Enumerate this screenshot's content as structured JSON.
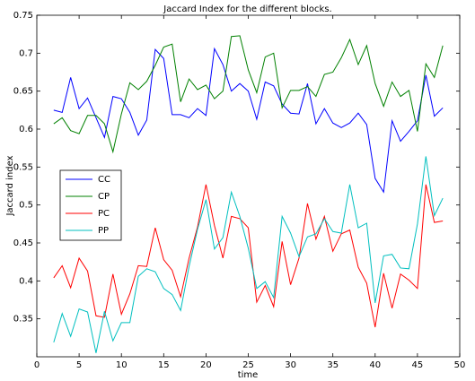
{
  "chart_data": {
    "type": "line",
    "title": "Jaccard Index for the different blocks.",
    "x_label": "time",
    "y_label": "Jaccard index",
    "x": [
      2,
      3,
      4,
      5,
      6,
      7,
      8,
      9,
      10,
      11,
      12,
      13,
      14,
      15,
      16,
      17,
      18,
      19,
      20,
      21,
      22,
      23,
      24,
      25,
      26,
      27,
      28,
      29,
      30,
      31,
      32,
      33,
      34,
      35,
      36,
      37,
      38,
      39,
      40,
      41,
      42,
      43,
      44,
      45,
      46,
      47,
      48
    ],
    "series": [
      {
        "name": "CC",
        "color": "#0000ff",
        "values": [
          0.625,
          0.622,
          0.668,
          0.627,
          0.641,
          0.615,
          0.589,
          0.643,
          0.64,
          0.622,
          0.592,
          0.612,
          0.705,
          0.693,
          0.619,
          0.619,
          0.615,
          0.627,
          0.618,
          0.706,
          0.685,
          0.65,
          0.66,
          0.65,
          0.613,
          0.662,
          0.657,
          0.633,
          0.621,
          0.62,
          0.66,
          0.607,
          0.627,
          0.608,
          0.602,
          0.608,
          0.621,
          0.606,
          0.535,
          0.517,
          0.611,
          0.584,
          0.597,
          0.611,
          0.671,
          0.617,
          0.628
        ]
      },
      {
        "name": "CP",
        "color": "#008000",
        "values": [
          0.607,
          0.615,
          0.598,
          0.594,
          0.618,
          0.618,
          0.607,
          0.57,
          0.62,
          0.661,
          0.652,
          0.663,
          0.684,
          0.708,
          0.712,
          0.636,
          0.666,
          0.652,
          0.658,
          0.64,
          0.65,
          0.722,
          0.723,
          0.678,
          0.648,
          0.695,
          0.7,
          0.628,
          0.651,
          0.651,
          0.656,
          0.643,
          0.672,
          0.675,
          0.694,
          0.718,
          0.685,
          0.71,
          0.66,
          0.63,
          0.662,
          0.643,
          0.651,
          0.597,
          0.686,
          0.668,
          0.71
        ]
      },
      {
        "name": "PC",
        "color": "#ff0000",
        "values": [
          0.404,
          0.42,
          0.391,
          0.43,
          0.413,
          0.354,
          0.352,
          0.409,
          0.356,
          0.383,
          0.42,
          0.419,
          0.47,
          0.428,
          0.414,
          0.379,
          0.43,
          0.471,
          0.527,
          0.473,
          0.43,
          0.485,
          0.482,
          0.47,
          0.372,
          0.394,
          0.366,
          0.452,
          0.395,
          0.43,
          0.502,
          0.455,
          0.485,
          0.439,
          0.462,
          0.467,
          0.418,
          0.397,
          0.339,
          0.41,
          0.364,
          0.409,
          0.401,
          0.39,
          0.527,
          0.477,
          0.479
        ]
      },
      {
        "name": "PP",
        "color": "#00bfbf",
        "values": [
          0.319,
          0.357,
          0.327,
          0.363,
          0.359,
          0.305,
          0.36,
          0.321,
          0.345,
          0.345,
          0.406,
          0.416,
          0.412,
          0.39,
          0.382,
          0.361,
          0.419,
          0.468,
          0.507,
          0.442,
          0.457,
          0.517,
          0.485,
          0.443,
          0.39,
          0.399,
          0.378,
          0.485,
          0.463,
          0.432,
          0.458,
          0.462,
          0.482,
          0.465,
          0.463,
          0.527,
          0.47,
          0.476,
          0.371,
          0.433,
          0.435,
          0.417,
          0.416,
          0.475,
          0.564,
          0.486,
          0.509
        ]
      }
    ],
    "xlim": [
      0,
      50
    ],
    "xticks": [
      0,
      5,
      10,
      15,
      20,
      25,
      30,
      35,
      40,
      45,
      50
    ],
    "ylim": [
      0.3,
      0.75
    ],
    "yticks": [
      0.35,
      0.4,
      0.45,
      0.5,
      0.55,
      0.6,
      0.65,
      0.7,
      0.75
    ],
    "grid": false,
    "legend": "left"
  }
}
